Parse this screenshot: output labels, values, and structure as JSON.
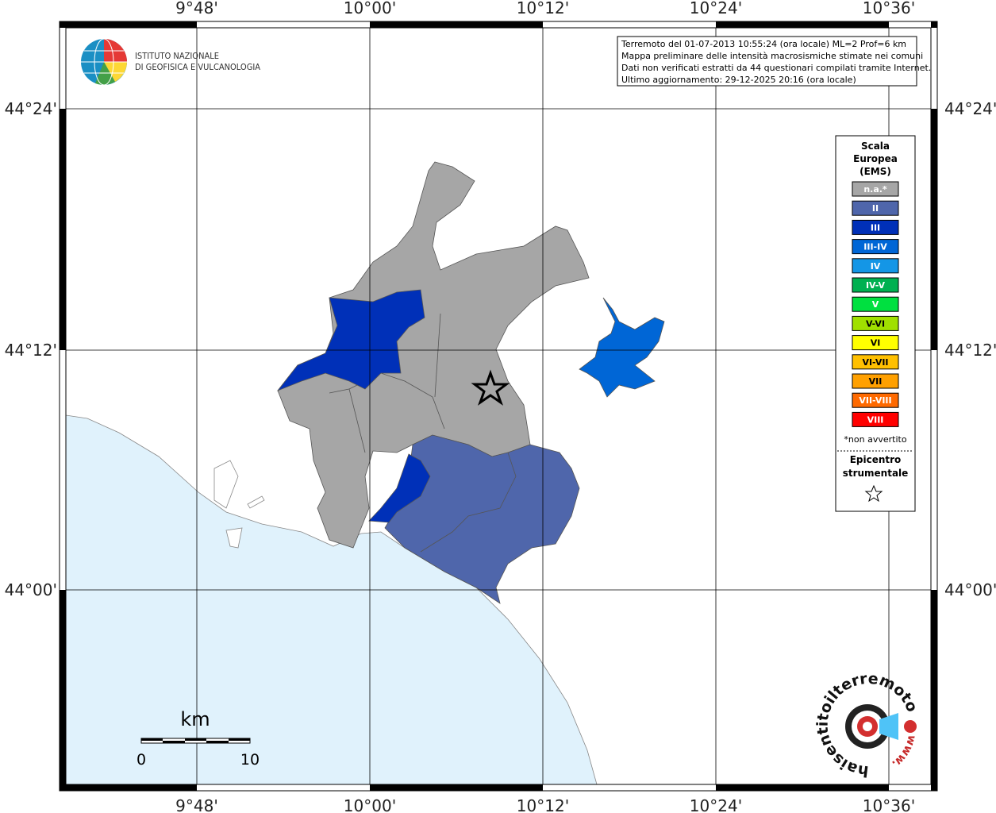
{
  "map": {
    "logo": [
      "ISTITUTO NAZIONALE",
      "DI GEOFISICA E VULCANOLOGIA"
    ],
    "info": [
      "Terremoto del 01-07-2013 10:55:24 (ora locale) ML=2 Prof=6 km",
      "Mappa preliminare delle intensità macrosismiche stimate nei comuni",
      "Dati non verificati estratti da 44 questionari compilati tramite Internet.",
      "Ultimo aggiornamento: 29-12-2025 20:16 (ora locale)"
    ],
    "x_ticks": [
      "9°48'",
      "10°00'",
      "10°12'",
      "10°24'",
      "10°36'"
    ],
    "y_ticks": [
      "44°24'",
      "44°12'",
      "44°00'"
    ],
    "legend": {
      "title": [
        "Scala",
        "Europea",
        "(EMS)"
      ],
      "items": [
        {
          "label": "n.a.*",
          "color": "#a6a6a6"
        },
        {
          "label": "II",
          "color": "#4f66ab"
        },
        {
          "label": "III",
          "color": "#0030b8"
        },
        {
          "label": "III-IV",
          "color": "#0066d6"
        },
        {
          "label": "IV",
          "color": "#1496e6"
        },
        {
          "label": "IV-V",
          "color": "#00b050"
        },
        {
          "label": "V",
          "color": "#00e040"
        },
        {
          "label": "V-VI",
          "color": "#a0e000"
        },
        {
          "label": "VI",
          "color": "#ffff00"
        },
        {
          "label": "VI-VII",
          "color": "#ffc000"
        },
        {
          "label": "VII",
          "color": "#ffa000"
        },
        {
          "label": "VII-VIII",
          "color": "#ff6a00"
        },
        {
          "label": "VIII",
          "color": "#ff0000"
        }
      ],
      "note": "*non avvertito",
      "epicenter": [
        "Epicentro",
        "strumentale"
      ]
    },
    "scale_bar": {
      "unit": "km",
      "labels": [
        "0",
        "10"
      ]
    },
    "watermark": {
      "prefix": "www.",
      "site": "haisentitoilterremoto.it"
    }
  }
}
